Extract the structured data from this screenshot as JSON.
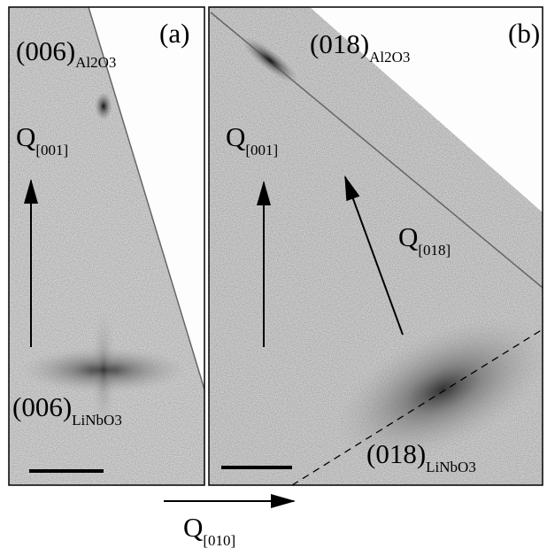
{
  "panels": [
    {
      "label": "(a)",
      "annotations": [
        {
          "main": "(006)",
          "sub": "Al2O3"
        },
        {
          "main": "Q",
          "sub": "[001]"
        },
        {
          "main": "(006)",
          "sub": "LiNbO3"
        }
      ]
    },
    {
      "label": "(b)",
      "annotations": [
        {
          "main": "(018)",
          "sub": "Al2O3"
        },
        {
          "main": "Q",
          "sub": "[001]"
        },
        {
          "main": "Q",
          "sub": "[018]"
        },
        {
          "main": "(018)",
          "sub": "LiNbO3"
        }
      ]
    }
  ],
  "axis": {
    "main": "Q",
    "sub": "[010]"
  }
}
